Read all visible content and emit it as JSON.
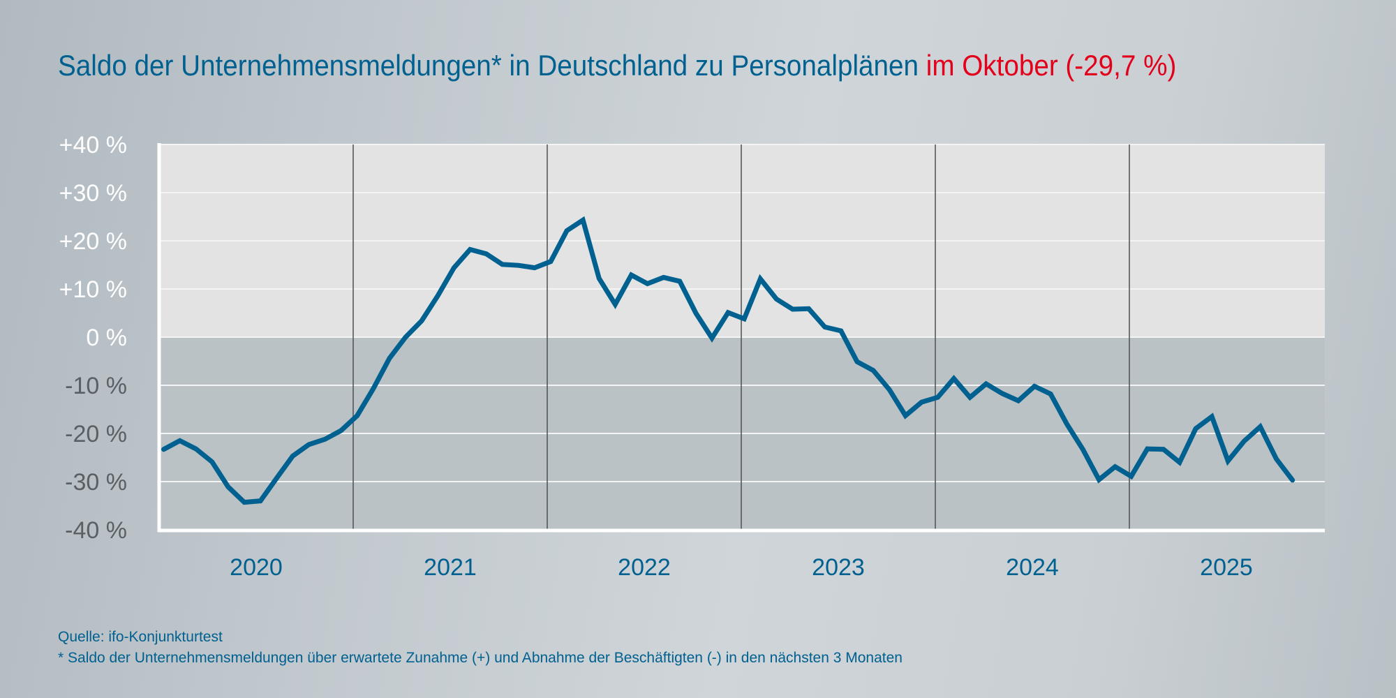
{
  "title": {
    "main": "Saldo der Unternehmensmeldungen* in Deutschland zu Personalplänen",
    "highlight": "im Oktober (-29,7 %)"
  },
  "colors": {
    "title": "#00608f",
    "highlight": "#e2001a",
    "line": "#00608f",
    "positive_area": "#e3e3e3",
    "negative_area": "#bac2c5",
    "positive_tick_labels": "#ffffff",
    "negative_tick_labels": "#5a5f63"
  },
  "footer": {
    "source": "Quelle: ifo-Konjunkturtest",
    "note": "* Saldo der Unternehmensmeldungen über erwartete Zunahme (+) und Abnahme der Beschäftigten (-) in den nächsten 3 Monaten"
  },
  "chart_data": {
    "type": "line",
    "title": "Saldo der Unternehmensmeldungen* in Deutschland zu Personalplänen im Oktober (-29,7 %)",
    "xlabel": "",
    "ylabel": "",
    "ylim": [
      -40,
      40
    ],
    "y_ticks": [
      40,
      30,
      20,
      10,
      0,
      -10,
      -20,
      -30,
      -40
    ],
    "y_tick_labels": [
      "+40 %",
      "+30 %",
      "+20 %",
      "+10 %",
      "0 %",
      "-10 %",
      "-20 %",
      "-30 %",
      "-40 %"
    ],
    "x_tick_labels": [
      "2020",
      "2021",
      "2022",
      "2023",
      "2024",
      "2025"
    ],
    "grid": true,
    "x": [
      "2019-12",
      "2020-01",
      "2020-02",
      "2020-03",
      "2020-04",
      "2020-05",
      "2020-06",
      "2020-07",
      "2020-08",
      "2020-09",
      "2020-10",
      "2020-11",
      "2020-12",
      "2021-01",
      "2021-02",
      "2021-03",
      "2021-04",
      "2021-05",
      "2021-06",
      "2021-07",
      "2021-08",
      "2021-09",
      "2021-10",
      "2021-11",
      "2021-12",
      "2022-01",
      "2022-02",
      "2022-03",
      "2022-04",
      "2022-05",
      "2022-06",
      "2022-07",
      "2022-08",
      "2022-09",
      "2022-10",
      "2022-11",
      "2022-12",
      "2023-01",
      "2023-02",
      "2023-03",
      "2023-04",
      "2023-05",
      "2023-06",
      "2023-07",
      "2023-08",
      "2023-09",
      "2023-10",
      "2023-11",
      "2023-12",
      "2024-01",
      "2024-02",
      "2024-03",
      "2024-04",
      "2024-05",
      "2024-06",
      "2024-07",
      "2024-08",
      "2024-09",
      "2024-10",
      "2024-11",
      "2024-12",
      "2025-01",
      "2025-02",
      "2025-03",
      "2025-04",
      "2025-05",
      "2025-06",
      "2025-07",
      "2025-08",
      "2025-09",
      "2025-10"
    ],
    "series": [
      {
        "values": [
          -23.3,
          -21.5,
          -23.2,
          -25.9,
          -31.1,
          -34.3,
          -34.0,
          -29.3,
          -24.7,
          -22.3,
          -21.2,
          -19.4,
          -16.3,
          -10.7,
          -4.4,
          0.0,
          3.4,
          8.6,
          14.4,
          18.2,
          17.3,
          15.1,
          14.9,
          14.4,
          15.7,
          22.1,
          24.3,
          12.2,
          6.8,
          12.9,
          11.1,
          12.4,
          11.6,
          5.0,
          -0.2,
          5.1,
          3.8,
          12.1,
          7.9,
          5.8,
          5.9,
          2.1,
          1.3,
          -5.1,
          -6.9,
          -10.9,
          -16.3,
          -13.5,
          -12.5,
          -8.6,
          -12.5,
          -9.7,
          -11.7,
          -13.2,
          -10.2,
          -11.8,
          -18.0,
          -23.3,
          -29.6,
          -26.9,
          -28.9,
          -23.2,
          -23.3,
          -26.0,
          -19.0,
          -16.5,
          -25.7,
          -21.6,
          -18.6,
          -25.3,
          -29.7
        ]
      }
    ]
  }
}
